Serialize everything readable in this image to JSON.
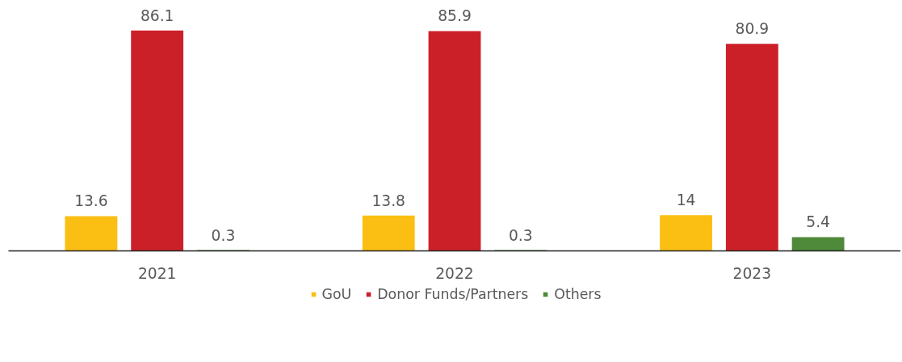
{
  "chart_data": {
    "type": "bar",
    "categories": [
      "2021",
      "2022",
      "2023"
    ],
    "series": [
      {
        "name": "GoU",
        "color": "#fbbf14",
        "values": [
          13.6,
          13.8,
          14
        ]
      },
      {
        "name": "Donor Funds/Partners",
        "color": "#cc2029",
        "values": [
          86.1,
          85.9,
          80.9
        ]
      },
      {
        "name": "Others",
        "color": "#4e8a3a",
        "values": [
          0.3,
          0.3,
          5.4
        ]
      }
    ],
    "data_labels": true,
    "grid": false,
    "legend": "bottom"
  }
}
